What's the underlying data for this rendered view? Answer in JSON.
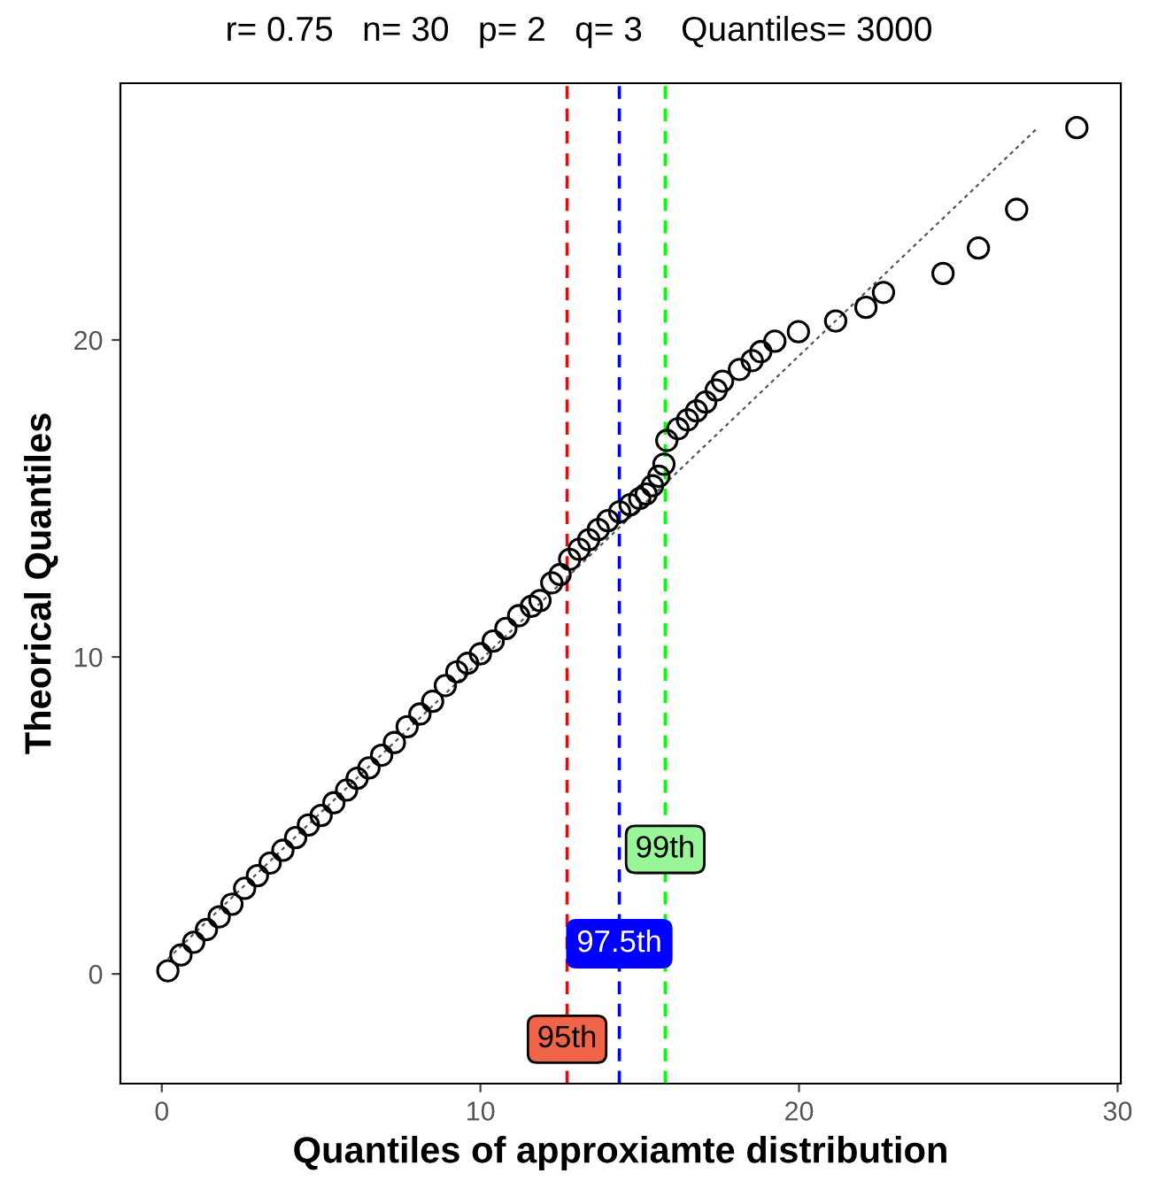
{
  "chart_data": {
    "type": "scatter",
    "title": "r= 0.75   n= 30   p= 2   q= 3    Quantiles= 3000",
    "xlabel": "Quantiles of approxiamte distribution",
    "ylabel": "Theorical Quantiles",
    "xlim": [
      -1.3,
      30.1
    ],
    "ylim": [
      -3.46,
      28.1
    ],
    "xticks": [
      0,
      10,
      20,
      30
    ],
    "yticks": [
      0,
      10,
      20
    ],
    "grid": false,
    "legend": false,
    "series": [
      {
        "color": "#000000",
        "marker": "circle",
        "x": [
          0.19,
          0.6,
          1.0,
          1.4,
          1.8,
          2.2,
          2.6,
          3.0,
          3.4,
          3.8,
          4.2,
          4.6,
          5.0,
          5.4,
          5.8,
          6.13,
          6.5,
          6.9,
          7.3,
          7.7,
          8.1,
          8.5,
          8.9,
          9.26,
          9.6,
          10.0,
          10.4,
          10.8,
          11.2,
          11.6,
          11.87,
          12.24,
          12.5,
          12.8,
          13.1,
          13.4,
          13.7,
          14.0,
          14.37,
          14.7,
          15.0,
          15.2,
          15.4,
          15.6,
          15.76,
          15.85,
          16.2,
          16.5,
          16.78,
          17.07,
          17.4,
          17.6,
          18.13,
          18.53,
          18.8,
          19.24,
          19.98,
          21.15,
          22.1,
          22.65,
          24.52,
          25.63,
          26.83,
          28.72
        ],
        "values": [
          0.1,
          0.6,
          1.0,
          1.4,
          1.8,
          2.2,
          2.7,
          3.1,
          3.5,
          3.9,
          4.3,
          4.7,
          5.0,
          5.4,
          5.8,
          6.17,
          6.5,
          6.9,
          7.3,
          7.8,
          8.2,
          8.6,
          9.1,
          9.53,
          9.8,
          10.1,
          10.5,
          10.9,
          11.3,
          11.6,
          11.78,
          12.34,
          12.6,
          13.08,
          13.4,
          13.7,
          14.02,
          14.3,
          14.58,
          14.8,
          15.0,
          15.14,
          15.4,
          15.7,
          16.08,
          16.83,
          17.2,
          17.48,
          17.76,
          18.04,
          18.42,
          18.7,
          19.07,
          19.35,
          19.63,
          19.96,
          20.26,
          20.6,
          21.03,
          21.5,
          22.1,
          22.9,
          24.12,
          26.7
        ]
      },
      {
        "type": "line",
        "color": "#555555",
        "line_style": "dotted",
        "marker": "none",
        "x": [
          0.19,
          27.5
        ],
        "values": [
          0.48,
          26.7
        ]
      }
    ],
    "ref_lines": [
      {
        "axis": "x",
        "value": 12.72,
        "color": "#ff0000",
        "line_style": "dashed"
      },
      {
        "axis": "x",
        "value": 14.36,
        "color": "#0000ff",
        "line_style": "dashed"
      },
      {
        "axis": "x",
        "value": 15.8,
        "color": "#00ff00",
        "line_style": "dashed"
      }
    ],
    "annotations": [
      {
        "text": "95th",
        "x": 12.72,
        "y": -2.06
      },
      {
        "text": "97.5th",
        "x": 14.36,
        "y": 0.95
      },
      {
        "text": "99th",
        "x": 15.8,
        "y": 3.93
      }
    ]
  }
}
